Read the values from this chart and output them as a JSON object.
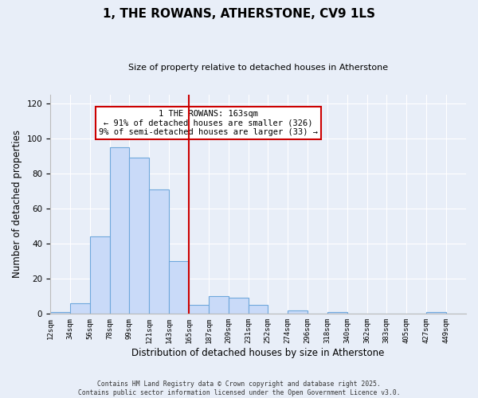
{
  "title": "1, THE ROWANS, ATHERSTONE, CV9 1LS",
  "subtitle": "Size of property relative to detached houses in Atherstone",
  "xlabel": "Distribution of detached houses by size in Atherstone",
  "ylabel": "Number of detached properties",
  "bin_labels": [
    "12sqm",
    "34sqm",
    "56sqm",
    "78sqm",
    "99sqm",
    "121sqm",
    "143sqm",
    "165sqm",
    "187sqm",
    "209sqm",
    "231sqm",
    "252sqm",
    "274sqm",
    "296sqm",
    "318sqm",
    "340sqm",
    "362sqm",
    "383sqm",
    "405sqm",
    "427sqm",
    "449sqm"
  ],
  "bar_values": [
    1,
    6,
    44,
    95,
    89,
    71,
    30,
    5,
    10,
    9,
    5,
    0,
    2,
    0,
    1,
    0,
    0,
    0,
    0,
    1,
    0
  ],
  "bar_color": "#c9daf8",
  "bar_edge_color": "#6fa8dc",
  "ylim": [
    0,
    125
  ],
  "yticks": [
    0,
    20,
    40,
    60,
    80,
    100,
    120
  ],
  "vline_x": 165,
  "vline_color": "#cc0000",
  "annotation_title": "1 THE ROWANS: 163sqm",
  "annotation_line1": "← 91% of detached houses are smaller (326)",
  "annotation_line2": "9% of semi-detached houses are larger (33) →",
  "annotation_box_color": "#ffffff",
  "annotation_box_edge_color": "#cc0000",
  "footer_line1": "Contains HM Land Registry data © Crown copyright and database right 2025.",
  "footer_line2": "Contains public sector information licensed under the Open Government Licence v3.0.",
  "background_color": "#e8eef8",
  "plot_bg_color": "#e8eef8",
  "grid_color": "#ffffff",
  "bin_edges": [
    12,
    34,
    56,
    78,
    99,
    121,
    143,
    165,
    187,
    209,
    231,
    252,
    274,
    296,
    318,
    340,
    362,
    383,
    405,
    427,
    449,
    471
  ]
}
